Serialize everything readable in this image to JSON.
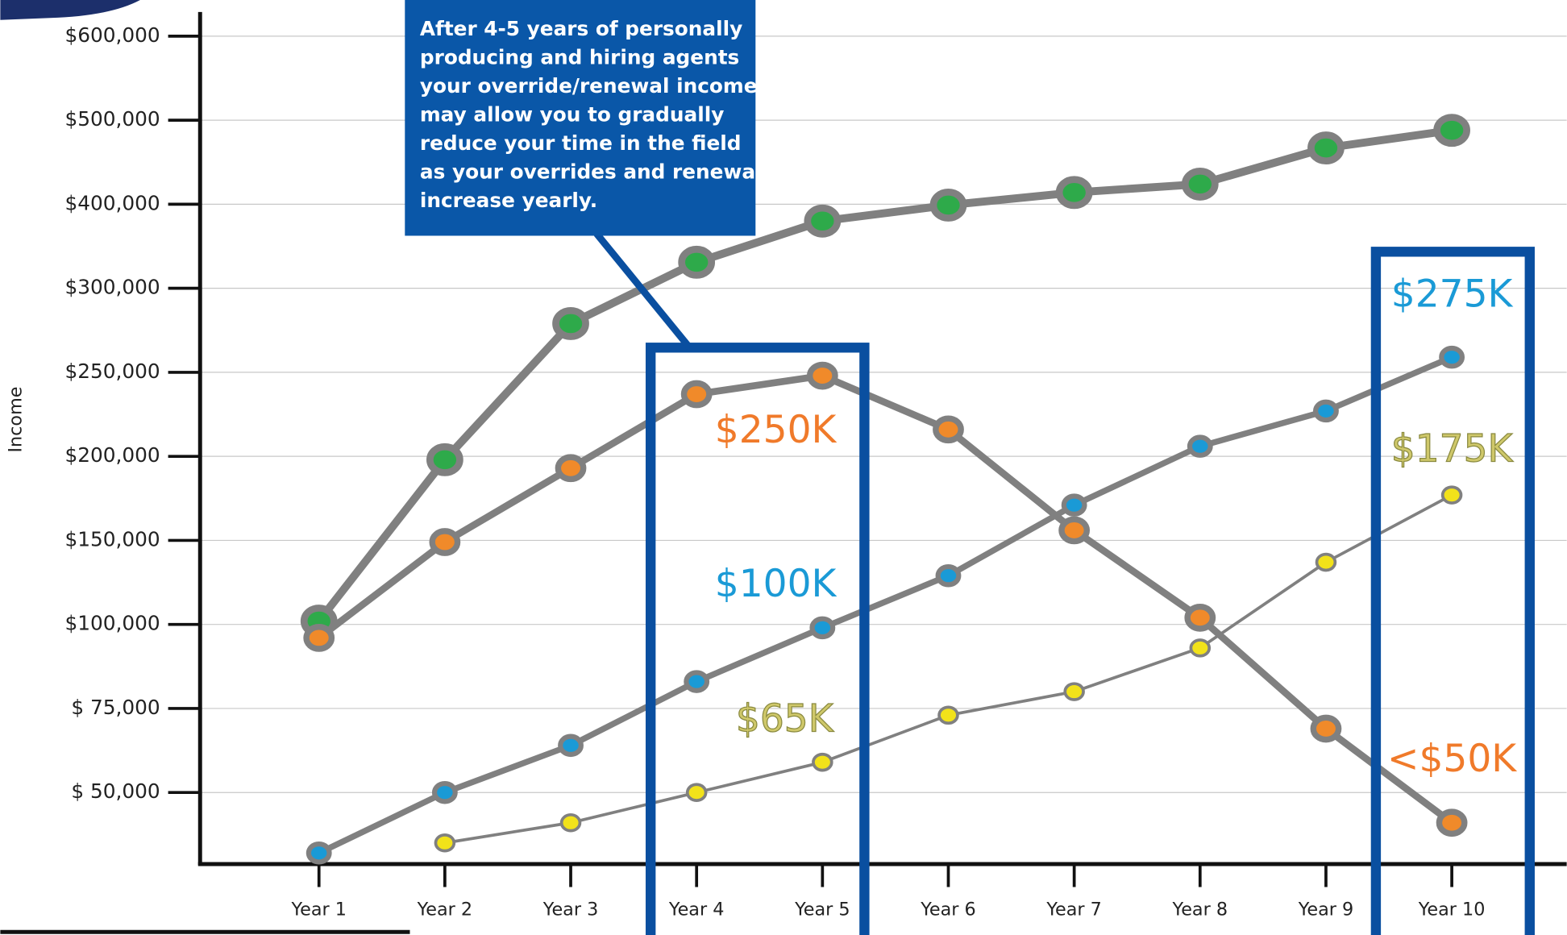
{
  "chart_data": {
    "type": "line",
    "y_label": "Income",
    "categories": [
      "Year 1",
      "Year 2",
      "Year 3",
      "Year 4",
      "Year 5",
      "Year 6",
      "Year 7",
      "Year 8",
      "Year 9",
      "Year 10"
    ],
    "ylim": [
      29000,
      630000
    ],
    "yticks": [
      {
        "value": 50000,
        "label": "$  50,000"
      },
      {
        "value": 75000,
        "label": "$  75,000"
      },
      {
        "value": 100000,
        "label": "$100,000"
      },
      {
        "value": 150000,
        "label": "$150,000"
      },
      {
        "value": 200000,
        "label": "$200,000"
      },
      {
        "value": 250000,
        "label": "$250,000"
      },
      {
        "value": 300000,
        "label": "$300,000"
      },
      {
        "value": 400000,
        "label": "$400,000"
      },
      {
        "value": 500000,
        "label": "$500,000"
      },
      {
        "value": 600000,
        "label": "$600,000"
      }
    ],
    "grid": true,
    "series": [
      {
        "color": "#2eaa4a",
        "values": [
          102000,
          198000,
          279000,
          331000,
          380000,
          399000,
          414000,
          424000,
          467000,
          488000
        ]
      },
      {
        "color": "#f08a2a",
        "values": [
          96000,
          149000,
          193000,
          237000,
          248000,
          216000,
          156000,
          104000,
          69000,
          41000
        ]
      },
      {
        "color": "#1a9ad6",
        "values": [
          32000,
          50000,
          64000,
          83000,
          99000,
          129000,
          171000,
          206000,
          227000,
          259000
        ]
      },
      {
        "color": "#f2e21a",
        "values": [
          null,
          35000,
          41000,
          50000,
          59000,
          73000,
          80000,
          93000,
          137000,
          177000
        ]
      }
    ],
    "callout": [
      "After 4-5 years of personally",
      "producing and hiring agents",
      "your override/renewal income",
      "may allow you to gradually",
      "reduce your time in the field",
      "as your overrides and renewals",
      "increase yearly."
    ],
    "annotations": [
      {
        "text": "$250K",
        "color": "#f07a2a"
      },
      {
        "text": "$100K",
        "color": "#1a9ad6"
      },
      {
        "text": "$65K",
        "color": "#cfc86a"
      },
      {
        "text": "$275K",
        "color": "#1a9ad6"
      },
      {
        "text": "$175K",
        "color": "#cfc86a"
      },
      {
        "text": "<$50K",
        "color": "#f07a2a"
      }
    ]
  }
}
